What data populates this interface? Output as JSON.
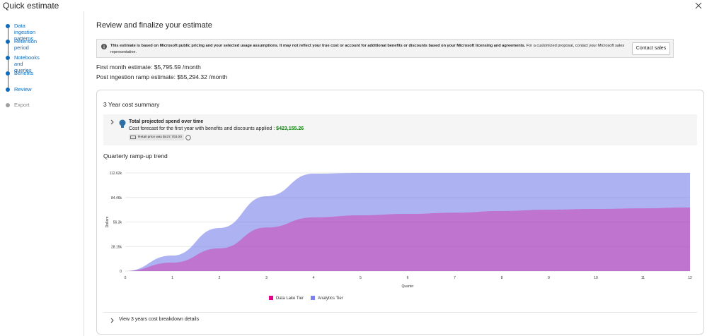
{
  "header": {
    "title": "Quick estimate"
  },
  "nav": {
    "steps": [
      "Data ingestion patterns",
      "Retention period",
      "Notebooks and queries",
      "Benefits",
      "Review",
      "Export"
    ]
  },
  "main": {
    "title": "Review and finalize your estimate",
    "notice": {
      "text_bold": "This estimate is based on Microsoft public pricing and your selected usage assumptions. It may not reflect your true cost or account for additional benefits or discounts based on your Microsoft licensing and agreements.",
      "text": "For a customized proposal, contact your Microsoft sales representative.",
      "button": "Contact sales"
    },
    "estimates": [
      "First month estimate: $5,795.59 /month",
      "Post ingestion ramp estimate: $55,294.32 /month"
    ],
    "summary": {
      "title": "3 Year cost summary",
      "total_title": "Total projected spend over time",
      "forecast_label": "Cost forecast for the first year with benefits and discounts applied :",
      "forecast_value": "$423,155.26",
      "retail_price": "Retail price was $437,703.00"
    },
    "chart_title": "Quarterly ramp-up trend",
    "breakdown_link": "View 3 years cost breakdown details"
  },
  "chart_data": {
    "type": "area",
    "x_label": "Quarter",
    "y_label": "Dollars",
    "x": [
      0,
      1,
      2,
      3,
      4,
      5,
      6,
      7,
      8,
      9,
      10,
      11,
      12
    ],
    "series": [
      {
        "name": "Data Lake Tier",
        "color": "#e3008c",
        "values": [
          0,
          9700,
          26000,
          50000,
          61600,
          64000,
          65600,
          67000,
          69000,
          70500,
          71300,
          72000,
          73000
        ]
      },
      {
        "name": "Analytics Tier",
        "color": "#7b83eb",
        "values": [
          0,
          17800,
          49400,
          85900,
          111800,
          112620,
          112620,
          112620,
          112620,
          112620,
          112620,
          112620,
          112620
        ]
      }
    ],
    "xlim": [
      0,
      12
    ],
    "xticks": [
      0,
      1,
      2,
      3,
      4,
      5,
      6,
      7,
      8,
      9,
      10,
      11,
      12
    ],
    "ylim": [
      0,
      112620
    ],
    "yticks": [
      0,
      {
        "value": 28150,
        "label": "28.15k"
      },
      {
        "value": 56300,
        "label": "56.3k"
      },
      {
        "value": 84460,
        "label": "84.46k"
      },
      {
        "value": 112620,
        "label": "112.62k"
      }
    ],
    "grid": true
  }
}
